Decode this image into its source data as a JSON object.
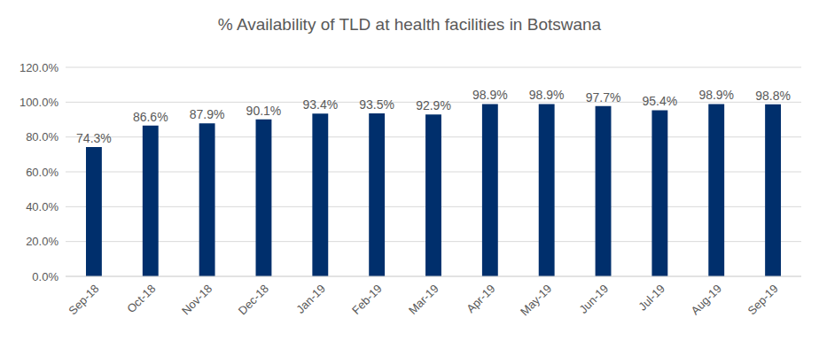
{
  "chart_data": {
    "type": "bar",
    "title": "% Availability of TLD at health facilities in Botswana",
    "categories": [
      "Sep-18",
      "Oct-18",
      "Nov-18",
      "Dec-18",
      "Jan-19",
      "Feb-19",
      "Mar-19",
      "Apr-19",
      "May-19",
      "Jun-19",
      "Jul-19",
      "Aug-19",
      "Sep-19"
    ],
    "values": [
      74.3,
      86.6,
      87.9,
      90.1,
      93.4,
      93.5,
      92.9,
      98.9,
      98.9,
      97.7,
      95.4,
      98.9,
      98.8
    ],
    "value_labels": [
      "74.3%",
      "86.6%",
      "87.9%",
      "90.1%",
      "93.4%",
      "93.5%",
      "92.9%",
      "98.9%",
      "98.9%",
      "97.7%",
      "95.4%",
      "98.9%",
      "98.8%"
    ],
    "color": "#002f6c",
    "ylim": [
      0,
      120
    ],
    "yticks": [
      {
        "value": 0,
        "label": "0.0%"
      },
      {
        "value": 20,
        "label": "20.0%"
      },
      {
        "value": 40,
        "label": "40.0%"
      },
      {
        "value": 60,
        "label": "60.0%"
      },
      {
        "value": 80,
        "label": "80.0%"
      },
      {
        "value": 100,
        "label": "100.0%"
      },
      {
        "value": 120,
        "label": "120.0%"
      }
    ],
    "grid": true,
    "data_labels": true
  }
}
